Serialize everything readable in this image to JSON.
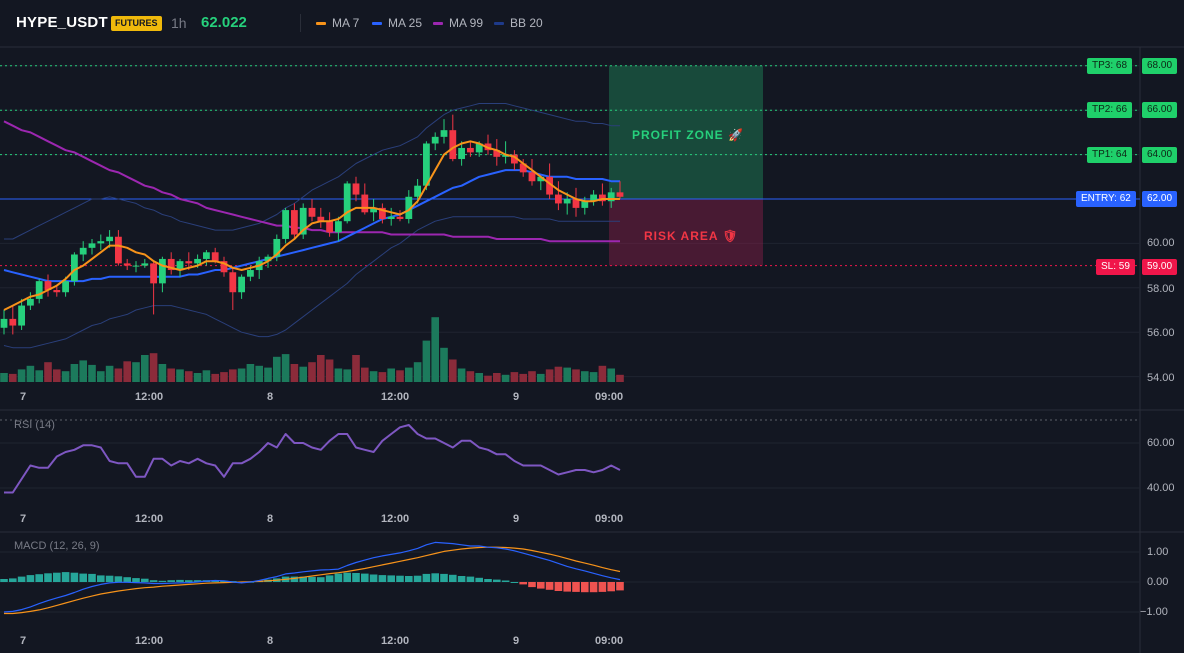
{
  "header": {
    "symbol": "HYPE_USDT",
    "badge": "FUTURES",
    "timeframe": "1h",
    "last_price": "62.022",
    "legend": [
      {
        "label": "MA 7",
        "color": "#f7931a"
      },
      {
        "label": "MA 25",
        "color": "#2962ff"
      },
      {
        "label": "MA 99",
        "color": "#9c27b0"
      },
      {
        "label": "BB 20",
        "color": "#1e3a8a"
      }
    ]
  },
  "colors": {
    "bg": "#131722",
    "up": "#26d07c",
    "down": "#f23645",
    "grid": "#1f2430"
  },
  "price_axis": [
    "68.00",
    "66.00",
    "64.00",
    "62.00",
    "60.00",
    "58.00",
    "56.00",
    "54.00"
  ],
  "levels": {
    "tp3": {
      "tag": "TP3: 68",
      "price": "68.00"
    },
    "tp2": {
      "tag": "TP2: 66",
      "price": "66.00"
    },
    "tp1": {
      "tag": "TP1: 64",
      "price": "64.00"
    },
    "entry": {
      "tag": "ENTRY: 62",
      "price": "62.00"
    },
    "sl": {
      "tag": "SL: 59",
      "price": "59.00"
    }
  },
  "zones": {
    "profit": "PROFIT ZONE 🚀",
    "risk": "RISK AREA 🛡"
  },
  "time_axis": [
    "7",
    "12:00",
    "8",
    "12:00",
    "9",
    "09:00"
  ],
  "rsi": {
    "title": "RSI (14)",
    "axis": [
      "60.00",
      "40.00"
    ]
  },
  "macd": {
    "title": "MACD (12, 26, 9)",
    "axis": [
      "1.00",
      "0.00",
      "−1.00"
    ]
  },
  "chart_data": {
    "type": "candlestick",
    "candles": [
      [
        56.2,
        57.0,
        55.9,
        56.6
      ],
      [
        56.6,
        57.2,
        55.9,
        56.3
      ],
      [
        56.3,
        57.5,
        56.1,
        57.2
      ],
      [
        57.2,
        57.8,
        57.0,
        57.5
      ],
      [
        57.5,
        58.4,
        57.3,
        58.3
      ],
      [
        58.3,
        58.6,
        57.6,
        57.9
      ],
      [
        57.9,
        58.1,
        57.6,
        57.8
      ],
      [
        57.8,
        58.5,
        57.6,
        58.3
      ],
      [
        58.3,
        59.6,
        58.1,
        59.5
      ],
      [
        59.5,
        60.1,
        59.2,
        59.8
      ],
      [
        59.8,
        60.2,
        59.5,
        60.0
      ],
      [
        60.0,
        60.4,
        59.7,
        60.1
      ],
      [
        60.1,
        60.6,
        59.8,
        60.3
      ],
      [
        60.3,
        60.6,
        59.0,
        59.1
      ],
      [
        59.1,
        59.3,
        58.8,
        59.0
      ],
      [
        59.0,
        59.2,
        58.7,
        59.0
      ],
      [
        59.0,
        59.3,
        58.9,
        59.1
      ],
      [
        59.1,
        59.2,
        56.8,
        58.2
      ],
      [
        58.2,
        59.4,
        57.8,
        59.3
      ],
      [
        59.3,
        59.6,
        58.6,
        58.8
      ],
      [
        58.8,
        59.3,
        58.5,
        59.2
      ],
      [
        59.2,
        59.6,
        58.8,
        59.1
      ],
      [
        59.1,
        59.5,
        58.9,
        59.3
      ],
      [
        59.3,
        59.7,
        59.0,
        59.6
      ],
      [
        59.6,
        59.8,
        59.1,
        59.2
      ],
      [
        59.2,
        59.4,
        58.5,
        58.7
      ],
      [
        58.7,
        58.9,
        57.0,
        57.8
      ],
      [
        57.8,
        58.6,
        57.5,
        58.5
      ],
      [
        58.5,
        59.0,
        58.3,
        58.8
      ],
      [
        58.8,
        59.4,
        58.4,
        59.2
      ],
      [
        59.2,
        59.5,
        58.9,
        59.4
      ],
      [
        59.4,
        60.4,
        59.2,
        60.2
      ],
      [
        60.2,
        61.6,
        60.0,
        61.5
      ],
      [
        61.5,
        61.8,
        60.2,
        60.4
      ],
      [
        60.4,
        61.8,
        60.2,
        61.6
      ],
      [
        61.6,
        62.0,
        61.0,
        61.2
      ],
      [
        61.2,
        61.6,
        60.7,
        61.0
      ],
      [
        61.0,
        61.4,
        60.3,
        60.5
      ],
      [
        60.5,
        61.2,
        60.1,
        61.0
      ],
      [
        61.0,
        62.8,
        60.9,
        62.7
      ],
      [
        62.7,
        63.0,
        61.9,
        62.2
      ],
      [
        62.2,
        62.7,
        61.3,
        61.4
      ],
      [
        61.4,
        62.0,
        61.0,
        61.6
      ],
      [
        61.6,
        61.8,
        60.9,
        61.1
      ],
      [
        61.1,
        61.6,
        60.8,
        61.2
      ],
      [
        61.2,
        61.5,
        61.0,
        61.1
      ],
      [
        61.1,
        62.4,
        60.9,
        62.1
      ],
      [
        62.1,
        62.9,
        61.8,
        62.6
      ],
      [
        62.6,
        64.6,
        62.4,
        64.5
      ],
      [
        64.5,
        65.0,
        64.2,
        64.8
      ],
      [
        64.8,
        65.6,
        64.5,
        65.1
      ],
      [
        65.1,
        65.8,
        63.7,
        63.8
      ],
      [
        63.8,
        64.6,
        63.5,
        64.3
      ],
      [
        64.3,
        64.6,
        63.9,
        64.1
      ],
      [
        64.1,
        64.6,
        63.9,
        64.5
      ],
      [
        64.5,
        64.9,
        64.0,
        64.2
      ],
      [
        64.2,
        64.7,
        63.5,
        63.9
      ],
      [
        63.9,
        64.6,
        63.6,
        64.0
      ],
      [
        64.0,
        64.2,
        63.3,
        63.6
      ],
      [
        63.6,
        63.8,
        63.0,
        63.2
      ],
      [
        63.2,
        63.8,
        62.6,
        62.8
      ],
      [
        62.8,
        63.0,
        62.4,
        63.0
      ],
      [
        63.0,
        63.6,
        62.0,
        62.2
      ],
      [
        62.2,
        62.8,
        61.5,
        61.8
      ],
      [
        61.8,
        62.3,
        61.3,
        62.0
      ],
      [
        62.0,
        62.5,
        61.2,
        61.6
      ],
      [
        61.6,
        62.1,
        61.3,
        61.9
      ],
      [
        61.9,
        62.4,
        61.7,
        62.2
      ],
      [
        62.2,
        62.7,
        61.7,
        61.9
      ],
      [
        61.9,
        62.5,
        61.6,
        62.3
      ],
      [
        62.3,
        62.8,
        62.0,
        62.1
      ]
    ],
    "volume": [
      10,
      9,
      14,
      18,
      13,
      22,
      14,
      12,
      20,
      24,
      19,
      12,
      18,
      15,
      23,
      22,
      30,
      32,
      20,
      15,
      14,
      12,
      10,
      13,
      9,
      11,
      14,
      15,
      20,
      18,
      16,
      28,
      31,
      20,
      17,
      22,
      30,
      25,
      15,
      14,
      30,
      16,
      12,
      11,
      15,
      13,
      16,
      22,
      46,
      72,
      38,
      25,
      15,
      12,
      10,
      7,
      10,
      8,
      11,
      9,
      12,
      9,
      14,
      17,
      16,
      14,
      12,
      11,
      18,
      15,
      8
    ],
    "ma7": [
      57.0,
      57.2,
      57.4,
      57.6,
      57.7,
      57.9,
      58.1,
      58.4,
      58.8,
      59.0,
      59.3,
      59.6,
      59.9,
      59.9,
      59.8,
      59.6,
      59.5,
      59.2,
      59.0,
      58.9,
      58.8,
      58.9,
      59.0,
      59.2,
      59.2,
      59.1,
      58.9,
      58.8,
      58.9,
      59.0,
      59.2,
      59.5,
      59.9,
      60.2,
      60.6,
      60.9,
      61.0,
      61.0,
      61.1,
      61.4,
      61.6,
      61.6,
      61.6,
      61.5,
      61.4,
      61.3,
      61.5,
      61.9,
      62.6,
      63.3,
      64.0,
      64.3,
      64.5,
      64.6,
      64.5,
      64.3,
      64.2,
      64.0,
      63.9,
      63.6,
      63.3,
      63.0,
      62.7,
      62.4,
      62.2,
      62.0,
      61.9,
      61.9,
      62.0,
      62.0,
      62.0
    ],
    "ma25": [
      58.8,
      58.7,
      58.6,
      58.5,
      58.4,
      58.3,
      58.3,
      58.3,
      58.3,
      58.3,
      58.4,
      58.4,
      58.5,
      58.5,
      58.5,
      58.5,
      58.5,
      58.5,
      58.5,
      58.5,
      58.5,
      58.6,
      58.6,
      58.7,
      58.8,
      58.8,
      58.9,
      59.0,
      59.1,
      59.2,
      59.3,
      59.4,
      59.5,
      59.6,
      59.7,
      59.8,
      59.9,
      60.0,
      60.1,
      60.3,
      60.5,
      60.7,
      60.9,
      61.1,
      61.2,
      61.3,
      61.5,
      61.7,
      61.9,
      62.1,
      62.3,
      62.5,
      62.6,
      62.8,
      63.0,
      63.1,
      63.2,
      63.3,
      63.3,
      63.3,
      63.2,
      63.1,
      63.0,
      63.0,
      63.0,
      62.9,
      62.9,
      62.9,
      62.9,
      62.8,
      62.8
    ],
    "ma99": [
      65.5,
      65.3,
      65.1,
      65.0,
      64.8,
      64.6,
      64.4,
      64.2,
      64.1,
      63.9,
      63.7,
      63.5,
      63.3,
      63.2,
      63.0,
      62.8,
      62.6,
      62.5,
      62.3,
      62.2,
      62.0,
      61.9,
      61.8,
      61.6,
      61.5,
      61.4,
      61.3,
      61.2,
      61.1,
      61.0,
      60.9,
      60.8,
      60.8,
      60.7,
      60.7,
      60.6,
      60.6,
      60.5,
      60.5,
      60.5,
      60.5,
      60.5,
      60.5,
      60.5,
      60.4,
      60.4,
      60.4,
      60.4,
      60.4,
      60.4,
      60.4,
      60.3,
      60.3,
      60.3,
      60.3,
      60.3,
      60.2,
      60.2,
      60.2,
      60.2,
      60.2,
      60.2,
      60.1,
      60.1,
      60.1,
      60.1,
      60.1,
      60.1,
      60.1,
      60.1,
      60.1
    ],
    "bb_upper": [
      60.2,
      60.2,
      60.4,
      60.6,
      60.8,
      61.0,
      61.2,
      61.4,
      61.6,
      61.8,
      62.0,
      62.0,
      62.1,
      62.0,
      61.9,
      61.8,
      61.6,
      61.5,
      61.3,
      61.2,
      61.0,
      60.9,
      60.8,
      60.7,
      60.6,
      60.6,
      60.6,
      60.7,
      60.8,
      60.9,
      61.1,
      61.3,
      61.6,
      61.8,
      62.1,
      62.4,
      62.6,
      62.8,
      63.0,
      63.3,
      63.6,
      63.8,
      64.0,
      64.2,
      64.3,
      64.4,
      64.6,
      64.8,
      65.2,
      65.5,
      65.8,
      66.0,
      66.1,
      66.2,
      66.3,
      66.3,
      66.3,
      66.3,
      66.2,
      66.1,
      66.0,
      65.9,
      65.8,
      65.7,
      65.6,
      65.5,
      65.5,
      65.4,
      65.4,
      65.3,
      65.3
    ],
    "bb_lower": [
      55.4,
      55.3,
      55.3,
      55.3,
      55.4,
      55.5,
      55.6,
      55.7,
      55.9,
      56.1,
      56.3,
      56.4,
      56.6,
      56.7,
      56.8,
      57.0,
      57.1,
      57.2,
      57.2,
      57.2,
      57.1,
      57.0,
      56.9,
      56.8,
      56.6,
      56.4,
      56.2,
      56.0,
      55.9,
      55.8,
      55.8,
      55.9,
      56.1,
      56.4,
      56.7,
      57.0,
      57.3,
      57.6,
      57.9,
      58.2,
      58.6,
      58.9,
      59.2,
      59.5,
      59.8,
      60.0,
      60.3,
      60.6,
      60.8,
      61.0,
      61.1,
      61.2,
      61.2,
      61.2,
      61.2,
      61.2,
      61.2,
      61.2,
      61.2,
      61.1,
      61.1,
      61.1,
      61.1,
      61.0,
      61.0,
      61.0,
      61.0,
      61.0,
      61.0,
      61.0,
      61.0
    ],
    "rsi": [
      38,
      38,
      44,
      50,
      49,
      49,
      54,
      56,
      57,
      59,
      59,
      58,
      52,
      51,
      51,
      45,
      45,
      53,
      53,
      50,
      52,
      51,
      53,
      51,
      50,
      45,
      51,
      51,
      53,
      56,
      60,
      58,
      64,
      60,
      60,
      58,
      57,
      61,
      64,
      64,
      58,
      57,
      56,
      61,
      64,
      67,
      68,
      64,
      62,
      62,
      60,
      58,
      61,
      61,
      58,
      57,
      55,
      55,
      52,
      50,
      50,
      50,
      48,
      46,
      47,
      48,
      48,
      47,
      48,
      50,
      48
    ],
    "macd": [
      -1.0,
      -0.98,
      -0.92,
      -0.83,
      -0.72,
      -0.62,
      -0.53,
      -0.45,
      -0.35,
      -0.24,
      -0.15,
      -0.08,
      -0.03,
      -0.01,
      -0.01,
      -0.02,
      -0.03,
      -0.05,
      -0.05,
      -0.04,
      -0.03,
      -0.02,
      0.0,
      0.03,
      0.05,
      0.04,
      0.0,
      -0.03,
      0.0,
      0.05,
      0.12,
      0.18,
      0.27,
      0.3,
      0.34,
      0.37,
      0.4,
      0.41,
      0.43,
      0.55,
      0.65,
      0.73,
      0.81,
      0.87,
      0.92,
      0.97,
      1.04,
      1.12,
      1.24,
      1.32,
      1.3,
      1.28,
      1.24,
      1.2,
      1.2,
      1.16,
      1.14,
      1.1,
      1.04,
      0.96,
      0.88,
      0.8,
      0.72,
      0.62,
      0.52,
      0.44,
      0.37,
      0.29,
      0.21,
      0.14,
      0.08
    ],
    "signal": [
      -1.05,
      -1.05,
      -1.02,
      -0.98,
      -0.93,
      -0.86,
      -0.78,
      -0.7,
      -0.62,
      -0.54,
      -0.47,
      -0.4,
      -0.35,
      -0.3,
      -0.26,
      -0.22,
      -0.19,
      -0.17,
      -0.14,
      -0.12,
      -0.1,
      -0.08,
      -0.06,
      -0.04,
      -0.03,
      -0.02,
      -0.01,
      0.0,
      0.01,
      0.02,
      0.04,
      0.06,
      0.09,
      0.12,
      0.16,
      0.2,
      0.24,
      0.28,
      0.31,
      0.35,
      0.4,
      0.45,
      0.51,
      0.57,
      0.63,
      0.69,
      0.75,
      0.81,
      0.88,
      0.95,
      1.02,
      1.06,
      1.1,
      1.13,
      1.15,
      1.16,
      1.16,
      1.15,
      1.13,
      1.1,
      1.05,
      0.99,
      0.93,
      0.86,
      0.78,
      0.7,
      0.63,
      0.56,
      0.48,
      0.41,
      0.35
    ],
    "hist": [
      0.1,
      0.12,
      0.18,
      0.23,
      0.26,
      0.29,
      0.31,
      0.33,
      0.31,
      0.28,
      0.27,
      0.22,
      0.21,
      0.19,
      0.16,
      0.13,
      0.11,
      0.06,
      0.04,
      0.06,
      0.07,
      0.06,
      0.06,
      0.06,
      0.06,
      0.04,
      0.03,
      0.01,
      0.01,
      0.03,
      0.08,
      0.12,
      0.18,
      0.18,
      0.18,
      0.17,
      0.16,
      0.22,
      0.28,
      0.31,
      0.3,
      0.28,
      0.25,
      0.23,
      0.22,
      0.21,
      0.2,
      0.21,
      0.27,
      0.29,
      0.27,
      0.24,
      0.2,
      0.18,
      0.14,
      0.1,
      0.08,
      0.05,
      0.0,
      -0.08,
      -0.17,
      -0.22,
      -0.26,
      -0.3,
      -0.32,
      -0.33,
      -0.34,
      -0.34,
      -0.33,
      -0.31,
      -0.28
    ]
  }
}
